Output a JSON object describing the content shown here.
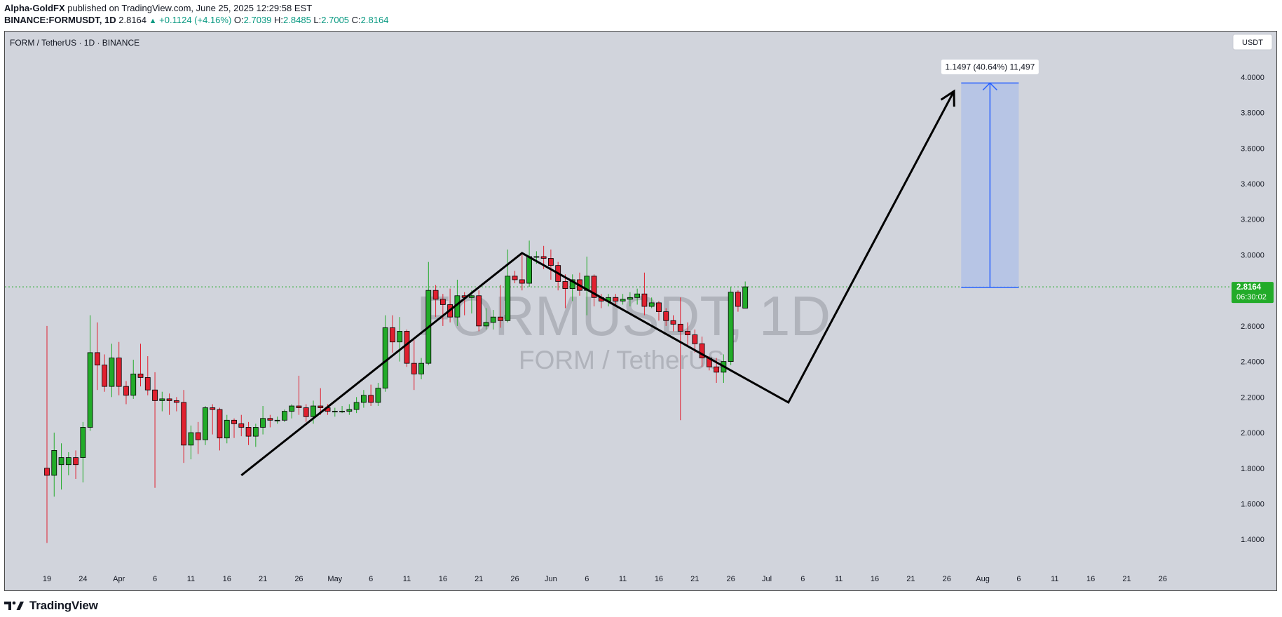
{
  "header": {
    "author": "Alpha-GoldFX",
    "published": "published on TradingView.com, June 25, 2025 12:29:58 EST",
    "symbol": "BINANCE:FORMUSDT, 1D",
    "last": "2.8164",
    "change": "+0.1124 (+4.16%)",
    "o_label": "O:",
    "o": "2.7039",
    "h_label": "H:",
    "h": "2.8485",
    "l_label": "L:",
    "l": "2.7005",
    "c_label": "C:",
    "c": "2.8164"
  },
  "chart_title": "FORM / TetherUS · 1D · BINANCE",
  "currency_button": "USDT",
  "watermark": {
    "line1": "FORMUSDT, 1D",
    "line2": "FORM / TetherUS"
  },
  "price_badge": {
    "price": "2.8164",
    "countdown": "06:30:02"
  },
  "measure_label": "1.1497 (40.64%) 11,497",
  "footer": {
    "brand": "TradingView"
  },
  "colors": {
    "background": "#d1d4dc",
    "up": "#22ab29",
    "down": "#e0202f",
    "price_line": "#22ab29",
    "measure_fill": "#b3c2e6",
    "measure_line": "#2962ff",
    "drawing": "#000000"
  },
  "chart_data": {
    "type": "candlestick",
    "title": "FORM / TetherUS · 1D · BINANCE",
    "x_axis_labels": [
      "19",
      "24",
      "Apr",
      "6",
      "11",
      "16",
      "21",
      "26",
      "May",
      "6",
      "11",
      "16",
      "21",
      "26",
      "Jun",
      "6",
      "11",
      "16",
      "21",
      "26",
      "Jul",
      "6",
      "11",
      "16",
      "21",
      "26",
      "Aug",
      "6",
      "11",
      "16",
      "21",
      "26"
    ],
    "y_axis_labels": [
      "4.0000",
      "3.8000",
      "3.6000",
      "3.4000",
      "3.2000",
      "3.0000",
      "2.8000",
      "2.6000",
      "2.4000",
      "2.2000",
      "2.0000",
      "1.8000",
      "1.6000",
      "1.4000"
    ],
    "ylim": [
      1.33,
      4.22
    ],
    "grid": false,
    "first_date": "2025-03-19",
    "candles": [
      [
        1.8,
        1.76,
        2.6,
        1.38
      ],
      [
        1.76,
        1.9,
        2.0,
        1.64
      ],
      [
        1.82,
        1.86,
        1.94,
        1.68
      ],
      [
        1.82,
        1.86,
        1.89,
        1.76
      ],
      [
        1.86,
        1.82,
        1.9,
        1.74
      ],
      [
        1.86,
        2.03,
        2.06,
        1.72
      ],
      [
        2.03,
        2.45,
        2.66,
        2.01
      ],
      [
        2.45,
        2.38,
        2.62,
        2.24
      ],
      [
        2.38,
        2.26,
        2.44,
        2.23
      ],
      [
        2.26,
        2.42,
        2.5,
        2.2
      ],
      [
        2.42,
        2.26,
        2.51,
        2.21
      ],
      [
        2.26,
        2.21,
        2.29,
        2.16
      ],
      [
        2.21,
        2.33,
        2.41,
        2.19
      ],
      [
        2.33,
        2.31,
        2.5,
        2.26
      ],
      [
        2.31,
        2.24,
        2.43,
        2.21
      ],
      [
        2.24,
        2.18,
        2.34,
        1.69
      ],
      [
        2.18,
        2.19,
        2.23,
        2.12
      ],
      [
        2.19,
        2.18,
        2.22,
        2.1
      ],
      [
        2.18,
        2.17,
        2.2,
        2.12
      ],
      [
        2.17,
        1.93,
        2.24,
        1.83
      ],
      [
        1.93,
        2.0,
        2.04,
        1.85
      ],
      [
        2.0,
        1.96,
        2.06,
        1.88
      ],
      [
        1.96,
        2.14,
        2.15,
        1.93
      ],
      [
        2.14,
        2.13,
        2.16,
        1.99
      ],
      [
        2.13,
        1.97,
        2.14,
        1.9
      ],
      [
        1.97,
        2.07,
        2.1,
        1.94
      ],
      [
        2.07,
        2.05,
        2.08,
        1.97
      ],
      [
        2.05,
        2.03,
        2.1,
        1.98
      ],
      [
        2.03,
        1.98,
        2.06,
        1.93
      ],
      [
        1.98,
        2.03,
        2.05,
        1.92
      ],
      [
        2.03,
        2.08,
        2.15,
        1.99
      ],
      [
        2.08,
        2.07,
        2.1,
        2.03
      ],
      [
        2.07,
        2.07,
        2.09,
        2.05
      ],
      [
        2.07,
        2.12,
        2.13,
        2.06
      ],
      [
        2.12,
        2.15,
        2.16,
        2.08
      ],
      [
        2.15,
        2.14,
        2.32,
        2.1
      ],
      [
        2.14,
        2.09,
        2.16,
        2.06
      ],
      [
        2.09,
        2.15,
        2.18,
        2.05
      ],
      [
        2.15,
        2.14,
        2.25,
        2.1
      ],
      [
        2.14,
        2.12,
        2.16,
        2.1
      ],
      [
        2.12,
        2.12,
        2.14,
        2.09
      ],
      [
        2.12,
        2.12,
        2.15,
        2.11
      ],
      [
        2.12,
        2.13,
        2.16,
        2.1
      ],
      [
        2.13,
        2.17,
        2.2,
        2.11
      ],
      [
        2.17,
        2.21,
        2.24,
        2.14
      ],
      [
        2.21,
        2.17,
        2.27,
        2.15
      ],
      [
        2.17,
        2.25,
        2.28,
        2.15
      ],
      [
        2.25,
        2.59,
        2.66,
        2.23
      ],
      [
        2.59,
        2.51,
        2.66,
        2.45
      ],
      [
        2.51,
        2.57,
        2.65,
        2.4
      ],
      [
        2.57,
        2.39,
        2.58,
        2.37
      ],
      [
        2.39,
        2.33,
        2.52,
        2.24
      ],
      [
        2.33,
        2.39,
        2.42,
        2.3
      ],
      [
        2.39,
        2.8,
        2.96,
        2.38
      ],
      [
        2.8,
        2.75,
        2.83,
        2.65
      ],
      [
        2.75,
        2.72,
        2.78,
        2.6
      ],
      [
        2.72,
        2.65,
        2.81,
        2.62
      ],
      [
        2.65,
        2.77,
        2.86,
        2.6
      ],
      [
        2.77,
        2.76,
        2.79,
        2.66
      ],
      [
        2.76,
        2.77,
        2.8,
        2.67
      ],
      [
        2.77,
        2.6,
        2.8,
        2.57
      ],
      [
        2.6,
        2.62,
        2.7,
        2.58
      ],
      [
        2.62,
        2.65,
        2.69,
        2.58
      ],
      [
        2.65,
        2.63,
        2.83,
        2.59
      ],
      [
        2.63,
        2.88,
        3.03,
        2.62
      ],
      [
        2.88,
        2.86,
        2.91,
        2.84
      ],
      [
        2.86,
        2.84,
        3.0,
        2.8
      ],
      [
        2.84,
        2.99,
        3.08,
        2.82
      ],
      [
        2.99,
        2.99,
        3.02,
        2.95
      ],
      [
        2.99,
        2.98,
        3.05,
        2.92
      ],
      [
        2.98,
        2.94,
        3.03,
        2.86
      ],
      [
        2.94,
        2.85,
        2.96,
        2.8
      ],
      [
        2.85,
        2.81,
        2.89,
        2.7
      ],
      [
        2.81,
        2.86,
        2.89,
        2.74
      ],
      [
        2.86,
        2.8,
        2.9,
        2.77
      ],
      [
        2.8,
        2.88,
        2.99,
        2.66
      ],
      [
        2.88,
        2.76,
        2.89,
        2.71
      ],
      [
        2.76,
        2.74,
        2.78,
        2.7
      ],
      [
        2.74,
        2.76,
        2.78,
        2.71
      ],
      [
        2.76,
        2.74,
        2.78,
        2.72
      ],
      [
        2.74,
        2.75,
        2.78,
        2.72
      ],
      [
        2.75,
        2.76,
        2.79,
        2.71
      ],
      [
        2.76,
        2.78,
        2.81,
        2.72
      ],
      [
        2.78,
        2.71,
        2.9,
        2.66
      ],
      [
        2.71,
        2.73,
        2.76,
        2.7
      ],
      [
        2.73,
        2.68,
        2.74,
        2.63
      ],
      [
        2.68,
        2.63,
        2.7,
        2.6
      ],
      [
        2.63,
        2.61,
        2.66,
        2.57
      ],
      [
        2.61,
        2.57,
        2.76,
        2.07
      ],
      [
        2.57,
        2.55,
        2.62,
        2.49
      ],
      [
        2.55,
        2.5,
        2.58,
        2.45
      ],
      [
        2.5,
        2.42,
        2.54,
        2.37
      ],
      [
        2.42,
        2.37,
        2.43,
        2.35
      ],
      [
        2.37,
        2.34,
        2.42,
        2.28
      ],
      [
        2.34,
        2.4,
        2.44,
        2.28
      ],
      [
        2.4,
        2.79,
        2.82,
        2.38
      ],
      [
        2.79,
        2.71,
        2.8,
        2.68
      ],
      [
        2.7,
        2.82,
        2.85,
        2.7
      ]
    ],
    "drawings": {
      "swing_path_dates": [
        "2025-04-15",
        "2025-05-24",
        "2025-06-22",
        "2025-06-30",
        "2025-07-23"
      ],
      "swing_path_prices": [
        1.76,
        3.01,
        2.35,
        2.17,
        3.92
      ],
      "measure": {
        "from_date": "2025-07-24",
        "to_date": "2025-08-01",
        "from": 2.8164,
        "to": 3.9661,
        "label": "1.1497 (40.64%) 11,497"
      }
    }
  }
}
